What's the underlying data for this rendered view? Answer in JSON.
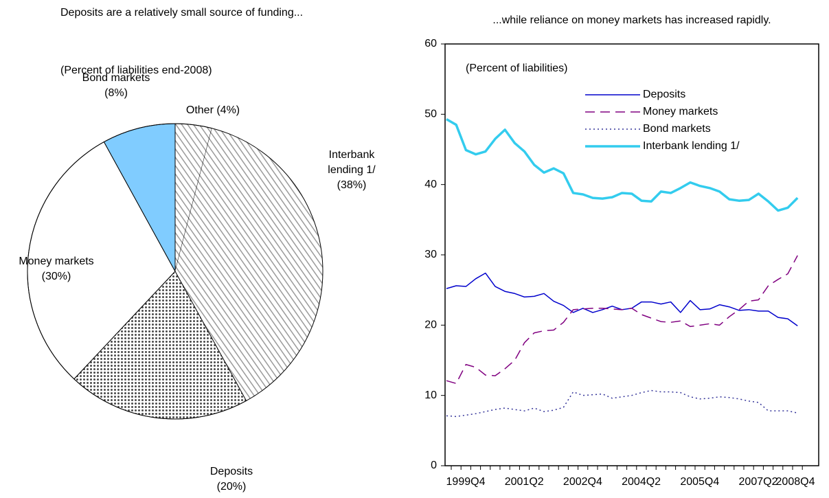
{
  "chart_data": [
    {
      "type": "pie",
      "title": "Deposits are a relatively small source of funding...",
      "subtitle": "(Percent of liabilities end-2008)",
      "categories": [
        "Other",
        "Interbank lending 1/",
        "Deposits",
        "Money markets",
        "Bond markets"
      ],
      "values": [
        4,
        38,
        20,
        30,
        8
      ],
      "value_labels": [
        "(4%)",
        "(38%)",
        "(20%)",
        "(30%)",
        "(8%)"
      ],
      "patterns": [
        "hatch",
        "hatch",
        "dots",
        "solid",
        "solid"
      ],
      "colors": [
        "#9a9a9a",
        "#9a9a9a",
        "#4a4a4a",
        "#ffffff",
        "#80ccff"
      ]
    },
    {
      "type": "line",
      "title": "...while reliance on money markets has increased rapidly.",
      "annotation": "(Percent of liabilities)",
      "categories": [
        "1999Q4",
        null,
        null,
        null,
        null,
        null,
        "2001Q2",
        null,
        null,
        null,
        null,
        null,
        "2002Q4",
        null,
        null,
        null,
        null,
        null,
        "2004Q2",
        null,
        null,
        null,
        null,
        null,
        "2005Q4",
        null,
        null,
        null,
        null,
        null,
        "2007Q2",
        null,
        null,
        null,
        null,
        null,
        "2008Q4"
      ],
      "ylim": [
        0,
        60
      ],
      "yticks": [
        0,
        10,
        20,
        30,
        40,
        50,
        60
      ],
      "grid": false,
      "legend": "top",
      "series": [
        {
          "name": "Deposits",
          "color": "#0000cc",
          "dash": "solid",
          "width": 1.5,
          "values": [
            25.2,
            25.6,
            25.5,
            26.6,
            27.4,
            25.5,
            24.8,
            24.5,
            24.0,
            24.1,
            24.5,
            23.4,
            22.8,
            21.8,
            22.4,
            21.8,
            22.2,
            22.7,
            22.2,
            22.4,
            23.3,
            23.3,
            23.0,
            23.3,
            21.8,
            23.5,
            22.2,
            22.3,
            22.9,
            22.6,
            22.1,
            22.2,
            22.0,
            22.0,
            21.1,
            20.9,
            19.9
          ]
        },
        {
          "name": "Money markets",
          "color": "#800080",
          "dash": "dashed",
          "width": 1.5,
          "values": [
            12.1,
            11.7,
            14.4,
            14.0,
            12.9,
            12.8,
            13.8,
            15.0,
            17.5,
            18.9,
            19.2,
            19.3,
            20.4,
            22.2,
            22.3,
            22.4,
            22.4,
            22.3,
            22.2,
            22.4,
            21.5,
            21.0,
            20.5,
            20.4,
            20.6,
            19.8,
            20.0,
            20.2,
            20.0,
            21.2,
            22.2,
            23.4,
            23.6,
            25.6,
            26.5,
            27.3,
            29.9
          ]
        },
        {
          "name": "Bond markets",
          "color": "#333399",
          "dash": "dotted",
          "width": 1.5,
          "values": [
            7.1,
            7.0,
            7.2,
            7.4,
            7.7,
            8.0,
            8.2,
            8.0,
            7.8,
            8.2,
            7.7,
            7.9,
            8.3,
            10.5,
            10.0,
            10.1,
            10.2,
            9.6,
            9.8,
            10.0,
            10.4,
            10.7,
            10.5,
            10.5,
            10.4,
            9.8,
            9.5,
            9.6,
            9.8,
            9.7,
            9.5,
            9.2,
            9.0,
            7.8,
            7.8,
            7.8,
            7.5
          ]
        },
        {
          "name": "Interbank lending 1/",
          "color": "#33ccee",
          "dash": "solid",
          "width": 3.5,
          "values": [
            49.3,
            48.5,
            44.9,
            44.3,
            44.7,
            46.5,
            47.8,
            45.9,
            44.7,
            42.8,
            41.7,
            42.3,
            41.6,
            38.8,
            38.6,
            38.1,
            38.0,
            38.2,
            38.8,
            38.7,
            37.7,
            37.6,
            39.0,
            38.8,
            39.5,
            40.3,
            39.8,
            39.5,
            39.0,
            37.9,
            37.7,
            37.8,
            38.7,
            37.6,
            36.3,
            36.7,
            38.1
          ]
        }
      ]
    }
  ]
}
